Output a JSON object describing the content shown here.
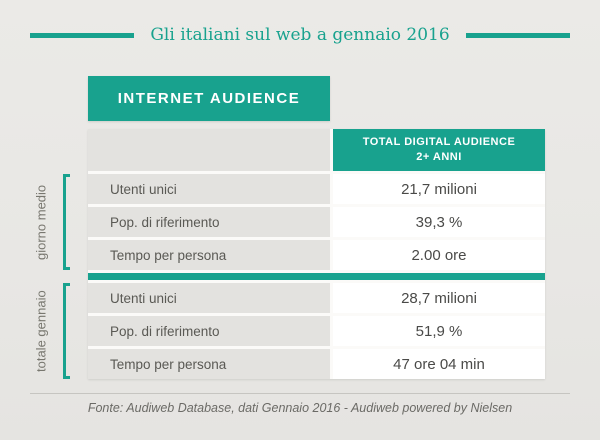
{
  "colors": {
    "teal": "#18a28e",
    "background": "#e9e8e5",
    "cell_gray": "#e3e2df",
    "value_text": "#4a4a48",
    "muted_text": "#6b6a66"
  },
  "header": {
    "title": "Gli italiani sul web a gennaio 2016"
  },
  "section": {
    "badge": "INTERNET AUDIENCE"
  },
  "table": {
    "header_line1": "TOTAL DIGITAL AUDIENCE",
    "header_line2": "2+ ANNI",
    "groups": [
      {
        "name": "giorno medio",
        "rows": [
          {
            "label": "Utenti unici",
            "value": "21,7 milioni"
          },
          {
            "label": "Pop. di riferimento",
            "value": "39,3 %"
          },
          {
            "label": "Tempo per persona",
            "value": "2.00 ore"
          }
        ]
      },
      {
        "name": "totale gennaio",
        "rows": [
          {
            "label": "Utenti unici",
            "value": "28,7 milioni"
          },
          {
            "label": "Pop. di riferimento",
            "value": "51,9 %"
          },
          {
            "label": "Tempo per persona",
            "value": "47 ore 04 min"
          }
        ]
      }
    ]
  },
  "footer": {
    "source": "Fonte: Audiweb Database, dati Gennaio 2016 - Audiweb powered by Nielsen"
  },
  "chart_data": {
    "type": "table",
    "title": "Gli italiani sul web a gennaio 2016",
    "subtitle": "INTERNET AUDIENCE",
    "columns": [
      "",
      "TOTAL DIGITAL AUDIENCE 2+ ANNI"
    ],
    "row_groups": [
      {
        "group": "giorno medio",
        "rows": [
          [
            "Utenti unici",
            "21,7 milioni"
          ],
          [
            "Pop. di riferimento",
            "39,3 %"
          ],
          [
            "Tempo per persona",
            "2.00 ore"
          ]
        ]
      },
      {
        "group": "totale gennaio",
        "rows": [
          [
            "Utenti unici",
            "28,7 milioni"
          ],
          [
            "Pop. di riferimento",
            "51,9 %"
          ],
          [
            "Tempo per persona",
            "47 ore 04 min"
          ]
        ]
      }
    ],
    "source": "Fonte: Audiweb Database, dati Gennaio 2016 - Audiweb powered by Nielsen"
  }
}
